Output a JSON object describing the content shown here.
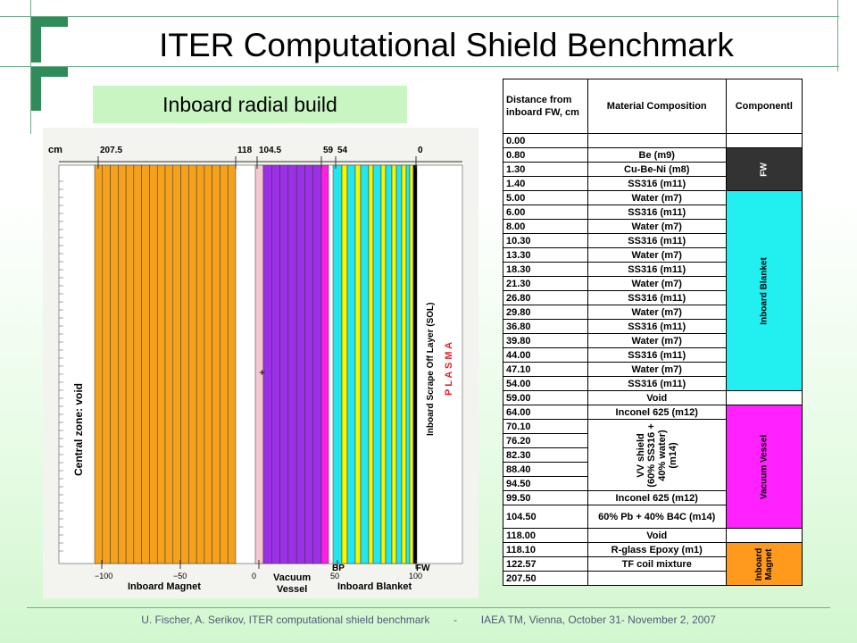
{
  "slide": {
    "title": "ITER Computational Shield Benchmark",
    "subtitle": "Inboard radial build",
    "footer": "U. Fischer, A. Serikov, ITER computational shield benchmark        -        IAEA TM, Vienna, October 31- November 2, 2007",
    "accent_color": "#2f8c5a"
  },
  "figure": {
    "unit_label": "cm",
    "top_ticks": [
      "207.5",
      "118",
      "104.5",
      "59",
      "54",
      "0"
    ],
    "bottom_ticks": [
      "−100",
      "−50",
      "0",
      "50",
      "100"
    ],
    "labels": {
      "central_zone": "Central zone: void",
      "scrape_off": "Inboard Scrape Off Layer (SOL)",
      "plasma": "P L A S M A",
      "inboard_magnet": "Inboard Magnet",
      "vacuum_vessel_1": "Vacuum",
      "vacuum_vessel_2": "Vessel",
      "inboard_blanket": "Inboard Blanket",
      "bp": "BP",
      "fw": "FW"
    },
    "colors": {
      "magnet": "#f5a11c",
      "vessel": "#9b30e6",
      "vessel_edge": "#ff1fe0",
      "blanket_water": "#22e6f0",
      "blanket_steel": "#f6f600",
      "fw": "#000000",
      "epoxy": "#f4c8d0"
    }
  },
  "table": {
    "headers": [
      "Distance from inboard FW, cm",
      "Material Composition",
      "Componentl"
    ],
    "rows": [
      {
        "d": "0.00",
        "m": ""
      },
      {
        "d": "0.80",
        "m": "Be (m9)"
      },
      {
        "d": "1.30",
        "m": "Cu-Be-Ni (m8)"
      },
      {
        "d": "1.40",
        "m": "SS316 (m11)"
      },
      {
        "d": "5.00",
        "m": "Water (m7)"
      },
      {
        "d": "6.00",
        "m": "SS316 (m11)"
      },
      {
        "d": "8.00",
        "m": "Water (m7)"
      },
      {
        "d": "10.30",
        "m": "SS316 (m11)"
      },
      {
        "d": "13.30",
        "m": "Water (m7)"
      },
      {
        "d": "18.30",
        "m": "SS316 (m11)"
      },
      {
        "d": "21.30",
        "m": "Water (m7)"
      },
      {
        "d": "26.80",
        "m": "SS316 (m11)"
      },
      {
        "d": "29.80",
        "m": "Water (m7)"
      },
      {
        "d": "36.80",
        "m": "SS316 (m11)"
      },
      {
        "d": "39.80",
        "m": "Water (m7)"
      },
      {
        "d": "44.00",
        "m": "SS316 (m11)"
      },
      {
        "d": "47.10",
        "m": "Water (m7)"
      },
      {
        "d": "54.00",
        "m": "SS316 (m11)"
      },
      {
        "d": "59.00",
        "m": "Void"
      },
      {
        "d": "64.00",
        "m": "Inconel 625 (m12)"
      },
      {
        "d": "70.10",
        "m": ""
      },
      {
        "d": "76.20",
        "m": ""
      },
      {
        "d": "82.30",
        "m": ""
      },
      {
        "d": "88.40",
        "m": ""
      },
      {
        "d": "94.50",
        "m": ""
      },
      {
        "d": "99.50",
        "m": "Inconel 625 (m12)"
      },
      {
        "d": "104.50",
        "m": "60% Pb + 40% B4C (m14)"
      },
      {
        "d": "118.00",
        "m": "Void"
      },
      {
        "d": "118.10",
        "m": "R-glass Epoxy (m1)"
      },
      {
        "d": "122.57",
        "m": "TF coil mixture"
      },
      {
        "d": "207.50",
        "m": ""
      }
    ],
    "vv_shield": [
      "VV shield",
      "(60% SS316 +",
      "40% water)",
      "(m14)"
    ],
    "components": {
      "fw": "FW",
      "blanket": "Inboard Blanket",
      "vessel": "Vacuum Vessel",
      "magnet": "Inboard Magnet"
    },
    "component_colors": {
      "fw": "#333333",
      "blanket": "#22f0f0",
      "vessel": "#ff22ff",
      "magnet": "#ff9a1c"
    }
  }
}
